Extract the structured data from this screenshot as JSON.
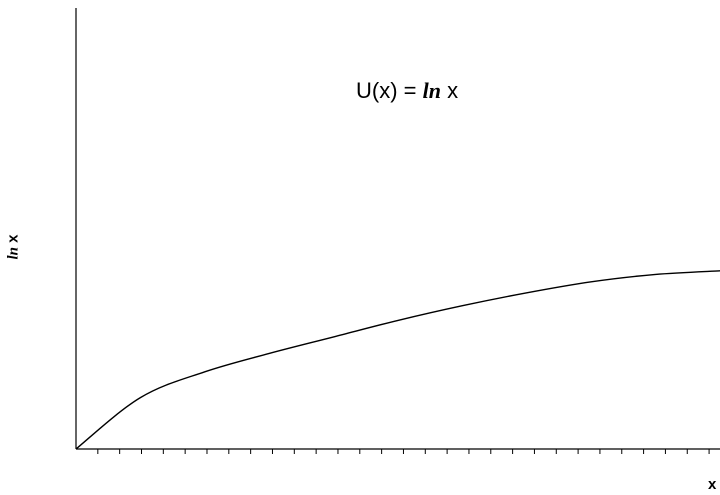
{
  "chart_data": {
    "type": "line",
    "title": "U(x) = ln x",
    "title_parts": {
      "prefix": "U(x) =",
      "function": "ln",
      "variable": "x"
    },
    "ylabel_parts": {
      "function": "ln",
      "variable": "x"
    },
    "xlabel": "x",
    "ylabel": "ln x",
    "x_tick_labels": [],
    "y_tick_labels": [],
    "grid": false,
    "legend": "none",
    "series": [
      {
        "x": [
          0,
          0.1,
          0.2,
          0.3,
          0.4,
          0.5,
          0.6,
          0.7,
          0.8,
          0.9,
          1.0
        ],
        "values": [
          0,
          0.28,
          0.42,
          0.52,
          0.61,
          0.7,
          0.78,
          0.85,
          0.91,
          0.95,
          0.97
        ]
      }
    ],
    "xlim": [
      0,
      1
    ],
    "ylim": [
      0,
      2.4
    ],
    "x_tick_count": 29
  }
}
